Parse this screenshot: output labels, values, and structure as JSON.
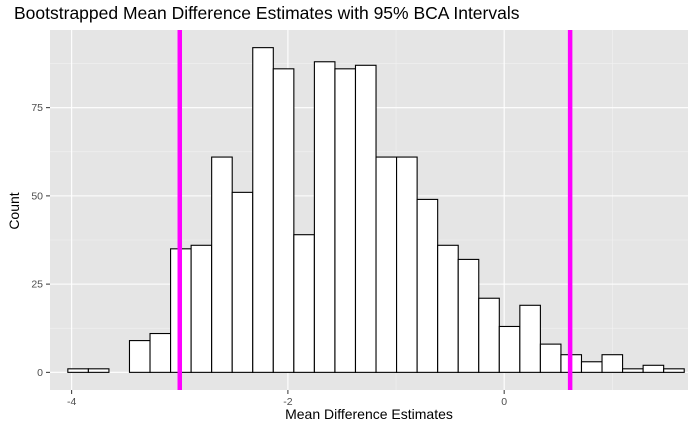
{
  "chart_data": {
    "type": "bar",
    "title": "Bootstrapped Mean Difference Estimates with 95% BCA Intervals",
    "xlabel": "Mean Difference Estimates",
    "ylabel": "Count",
    "xlim": [
      -4.2,
      1.7
    ],
    "ylim": [
      -5,
      97
    ],
    "xticks": [
      -4,
      -2,
      0
    ],
    "yticks": [
      0,
      25,
      50,
      75
    ],
    "bin_width": 0.19,
    "bins": [
      {
        "x": -3.94,
        "count": 1
      },
      {
        "x": -3.75,
        "count": 1
      },
      {
        "x": -3.56,
        "count": 0
      },
      {
        "x": -3.37,
        "count": 9
      },
      {
        "x": -3.18,
        "count": 11
      },
      {
        "x": -2.99,
        "count": 35
      },
      {
        "x": -2.8,
        "count": 36
      },
      {
        "x": -2.61,
        "count": 61
      },
      {
        "x": -2.42,
        "count": 51
      },
      {
        "x": -2.23,
        "count": 92
      },
      {
        "x": -2.04,
        "count": 86
      },
      {
        "x": -1.85,
        "count": 39
      },
      {
        "x": -1.66,
        "count": 88
      },
      {
        "x": -1.47,
        "count": 86
      },
      {
        "x": -1.28,
        "count": 87
      },
      {
        "x": -1.09,
        "count": 61
      },
      {
        "x": -0.9,
        "count": 61
      },
      {
        "x": -0.71,
        "count": 49
      },
      {
        "x": -0.52,
        "count": 36
      },
      {
        "x": -0.33,
        "count": 32
      },
      {
        "x": -0.14,
        "count": 21
      },
      {
        "x": 0.05,
        "count": 13
      },
      {
        "x": 0.24,
        "count": 19
      },
      {
        "x": 0.43,
        "count": 8
      },
      {
        "x": 0.62,
        "count": 5
      },
      {
        "x": 0.81,
        "count": 3
      },
      {
        "x": 1.0,
        "count": 5
      },
      {
        "x": 1.19,
        "count": 1
      },
      {
        "x": 1.38,
        "count": 2
      },
      {
        "x": 1.57,
        "count": 1
      }
    ],
    "interval_lines": [
      -3.0,
      0.61
    ],
    "interval_color": "#ff00ff",
    "panel_background": "#e5e5e5",
    "bar_fill": "#ffffff",
    "bar_outline": "#000000",
    "grid": true
  }
}
